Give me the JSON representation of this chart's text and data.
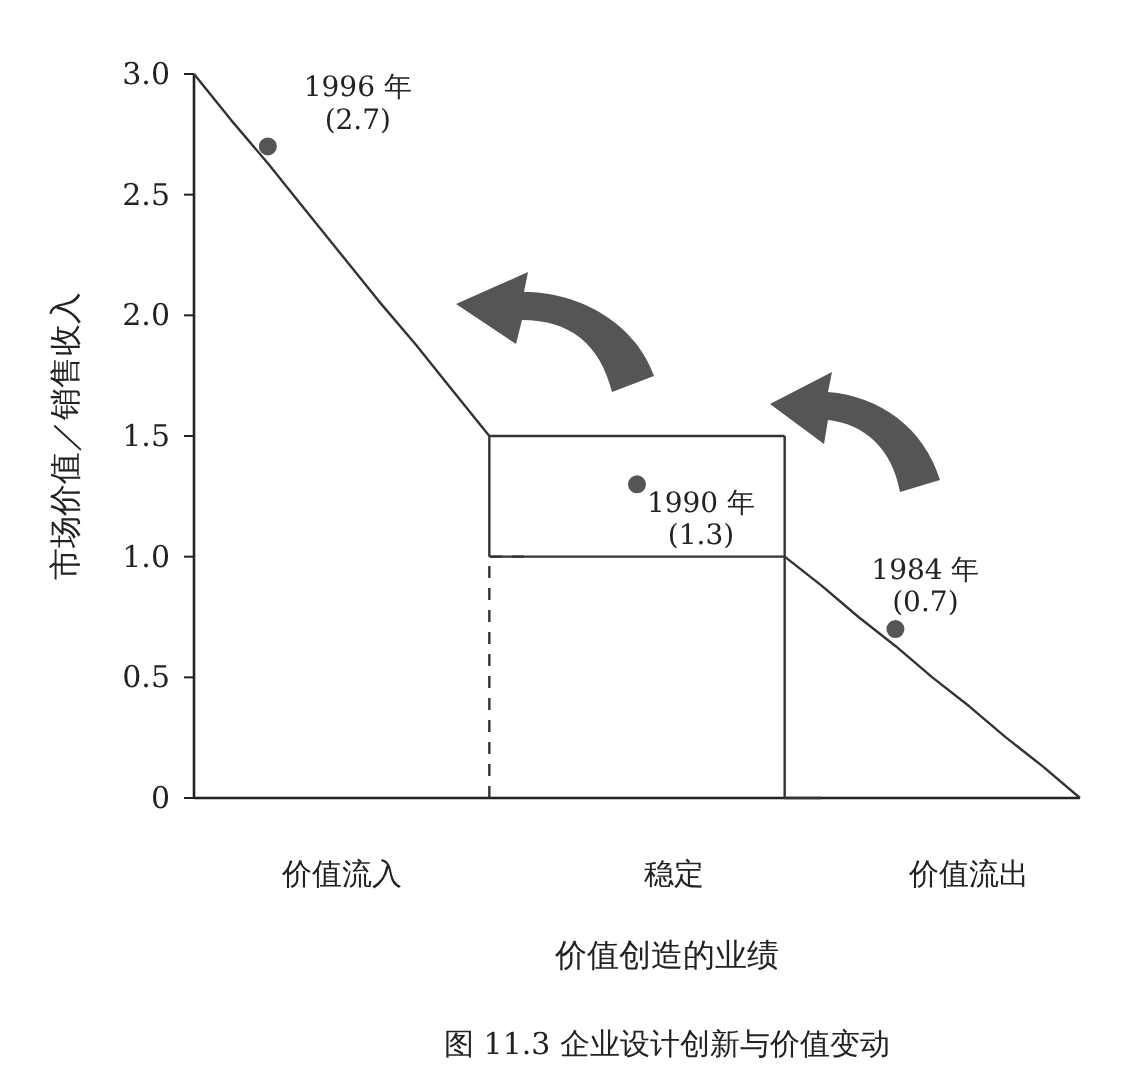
{
  "chart_data": {
    "type": "line",
    "title": "图 11.3 企业设计创新与价值变动",
    "xlabel": "价值创造的业绩",
    "ylabel": "市场价值／销售收入",
    "categories": [
      null,
      null,
      null,
      null,
      "价值流入",
      null,
      null,
      null,
      null,
      null,
      null,
      null,
      null,
      "稳定",
      null,
      null,
      null,
      null,
      null,
      null,
      null,
      "价值流出",
      null,
      null,
      null
    ],
    "ylim": [
      0,
      3
    ],
    "yticks": [
      {
        "value": 0,
        "label": "0"
      },
      {
        "value": 0.5,
        "label": "0.5"
      },
      {
        "value": 1,
        "label": "1.0"
      },
      {
        "value": 1.5,
        "label": "1.5"
      },
      {
        "value": 2,
        "label": "2.0"
      },
      {
        "value": 2.5,
        "label": "2.5"
      },
      {
        "value": 3,
        "label": "3.0"
      }
    ],
    "series": [
      {
        "type": "line",
        "color": "#333333",
        "line_style": "solid",
        "values": [
          3,
          2.81,
          2.63,
          2.44,
          2.25,
          2.06,
          1.88,
          1.69,
          1.5,
          null,
          null,
          null,
          null,
          null,
          null,
          null,
          null,
          null,
          null,
          null,
          null,
          null,
          null,
          null,
          null
        ]
      },
      {
        "type": "step",
        "color": "#333333",
        "line_style": "solid",
        "values": [
          null,
          null,
          null,
          null,
          null,
          null,
          null,
          null,
          1.0,
          1.5,
          1.5,
          1.5,
          1.5,
          1.5,
          1.5,
          1.5,
          1.5,
          null,
          null,
          null,
          null,
          null,
          null,
          null,
          null
        ]
      },
      {
        "type": "step",
        "color": "#333333",
        "line_style": "solid",
        "values": [
          null,
          null,
          null,
          null,
          null,
          null,
          null,
          null,
          null,
          null,
          null,
          null,
          null,
          null,
          null,
          null,
          1.5,
          0,
          null,
          null,
          null,
          null,
          null,
          null,
          null
        ]
      },
      {
        "type": "line",
        "color": "#333333",
        "line_style": "solid",
        "values": [
          null,
          null,
          null,
          null,
          null,
          null,
          null,
          null,
          1.0,
          1.0,
          1.0,
          1.0,
          1.0,
          1.0,
          1.0,
          1.0,
          1.0,
          0.88,
          0.75,
          0.63,
          0.5,
          0.38,
          0.25,
          0.13,
          0
        ]
      },
      {
        "type": "step",
        "color": "#333333",
        "line_style": "dashed",
        "values": [
          null,
          null,
          null,
          null,
          null,
          null,
          null,
          null,
          0,
          1.0,
          null,
          null,
          null,
          null,
          null,
          null,
          null,
          null,
          null,
          null,
          null,
          null,
          null,
          null,
          null
        ]
      },
      {
        "type": "scatter",
        "marker": "circle",
        "color": "#555555",
        "values": [
          null,
          null,
          2.7,
          null,
          null,
          null,
          null,
          null,
          null,
          null,
          null,
          null,
          1.3,
          null,
          null,
          null,
          null,
          null,
          null,
          0.7,
          null,
          null,
          null,
          null,
          null
        ],
        "value_labels": [
          null,
          null,
          "1996 年\n(2.7)",
          null,
          null,
          null,
          null,
          null,
          null,
          null,
          null,
          null,
          "1990 年\n(1.3)",
          null,
          null,
          null,
          null,
          null,
          null,
          "1984 年\n(0.7)",
          null,
          null,
          null,
          null,
          null
        ]
      }
    ]
  }
}
